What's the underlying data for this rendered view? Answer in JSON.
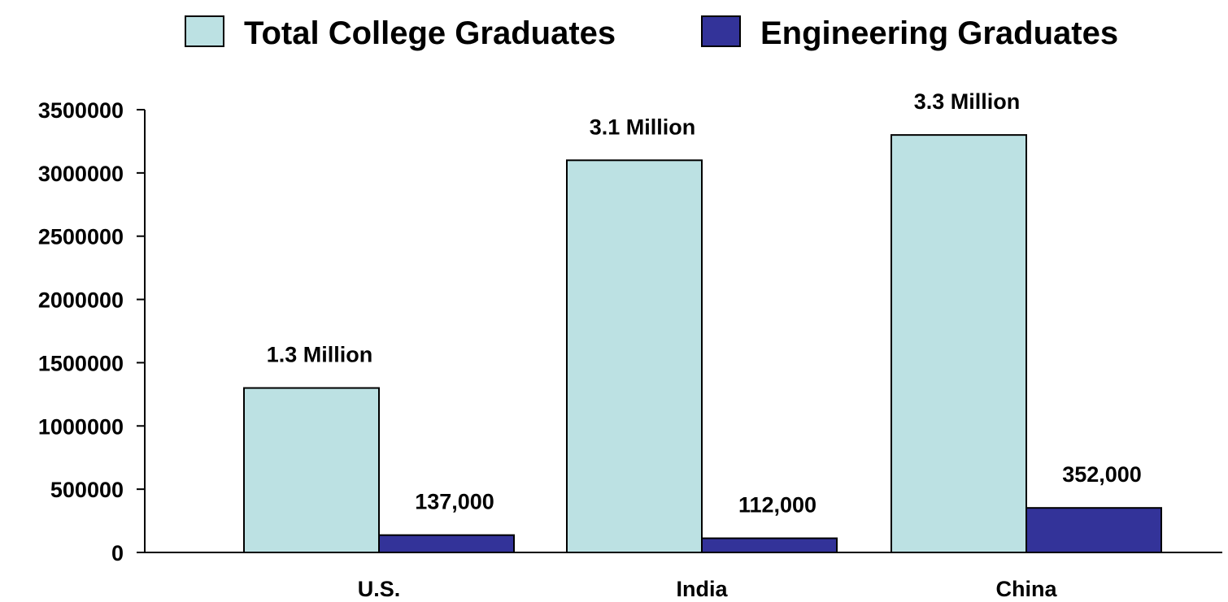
{
  "chart_data": {
    "type": "bar",
    "title": "",
    "xlabel": "",
    "ylabel": "",
    "categories": [
      "U.S.",
      "India",
      "China"
    ],
    "series": [
      {
        "name": "Total College Graduates",
        "values": [
          1300000,
          3100000,
          3300000
        ],
        "data_labels": [
          "1.3 Million",
          "3.1 Million",
          "3.3 Million"
        ],
        "color": "#BCE1E3"
      },
      {
        "name": "Engineering Graduates",
        "values": [
          137000,
          112000,
          352000
        ],
        "data_labels": [
          "137,000",
          "112,000",
          "352,000"
        ],
        "color": "#333399"
      }
    ],
    "ylim": [
      0,
      3500000
    ],
    "yticks": [
      0,
      500000,
      1000000,
      1500000,
      2000000,
      2500000,
      3000000,
      3500000
    ],
    "ytick_labels": [
      "0",
      "500000",
      "1000000",
      "1500000",
      "2000000",
      "2500000",
      "3000000",
      "3500000"
    ],
    "grid": false,
    "legend_position": "top-center"
  }
}
